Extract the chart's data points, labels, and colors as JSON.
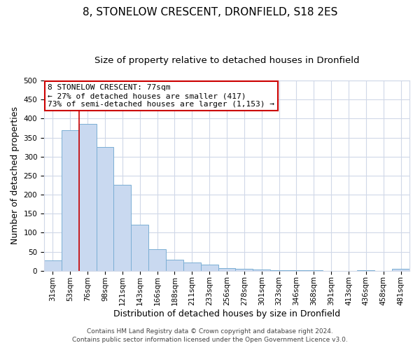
{
  "title": "8, STONELOW CRESCENT, DRONFIELD, S18 2ES",
  "subtitle": "Size of property relative to detached houses in Dronfield",
  "xlabel": "Distribution of detached houses by size in Dronfield",
  "ylabel": "Number of detached properties",
  "bar_labels": [
    "31sqm",
    "53sqm",
    "76sqm",
    "98sqm",
    "121sqm",
    "143sqm",
    "166sqm",
    "188sqm",
    "211sqm",
    "233sqm",
    "256sqm",
    "278sqm",
    "301sqm",
    "323sqm",
    "346sqm",
    "368sqm",
    "391sqm",
    "413sqm",
    "436sqm",
    "458sqm",
    "481sqm"
  ],
  "bar_values": [
    27,
    370,
    385,
    325,
    225,
    120,
    57,
    28,
    22,
    16,
    7,
    5,
    3,
    2,
    1,
    1,
    0,
    0,
    1,
    0,
    5
  ],
  "bar_color": "#c9d9f0",
  "bar_edge_color": "#7bafd4",
  "ylim": [
    0,
    500
  ],
  "yticks": [
    0,
    50,
    100,
    150,
    200,
    250,
    300,
    350,
    400,
    450,
    500
  ],
  "vline_x_index": 2,
  "vline_color": "#cc0000",
  "annotation_title": "8 STONELOW CRESCENT: 77sqm",
  "annotation_line1": "← 27% of detached houses are smaller (417)",
  "annotation_line2": "73% of semi-detached houses are larger (1,153) →",
  "annotation_box_color": "#cc0000",
  "grid_color": "#d0d8e8",
  "footer1": "Contains HM Land Registry data © Crown copyright and database right 2024.",
  "footer2": "Contains public sector information licensed under the Open Government Licence v3.0.",
  "title_fontsize": 11,
  "subtitle_fontsize": 9.5,
  "xlabel_fontsize": 9,
  "ylabel_fontsize": 9,
  "tick_fontsize": 7.5,
  "annotation_fontsize": 8,
  "footer_fontsize": 6.5
}
